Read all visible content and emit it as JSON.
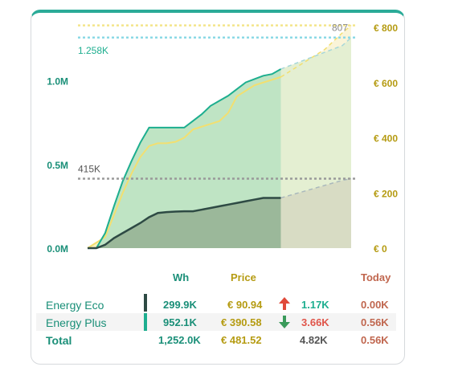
{
  "colors": {
    "eco": "#2e4a44",
    "plus": "#1dae8f",
    "price": "#e6d44a",
    "price_text": "#b59b12",
    "baseline_text": "#1dae8f",
    "today": "#c0664e",
    "up": "#e04a3a",
    "down": "#3a9a5a",
    "negative": "#e0554a"
  },
  "chart_data": {
    "type": "area",
    "y_left": {
      "ticks": [
        "0.0M",
        "0.5M",
        "1.0M"
      ],
      "values": [
        0,
        500000,
        1000000
      ],
      "range": [
        0,
        1300000
      ]
    },
    "y_right": {
      "ticks": [
        "€ 0",
        "€ 200",
        "€ 400",
        "€ 600",
        "€ 800"
      ],
      "values": [
        0,
        200,
        400,
        600,
        800
      ],
      "range": [
        0,
        800
      ]
    },
    "x": [
      0,
      1,
      2,
      3,
      4,
      5,
      6,
      7,
      8,
      9,
      10,
      11,
      12,
      13,
      14,
      15,
      16,
      17,
      18,
      19,
      20,
      21,
      22,
      23,
      24,
      25,
      26,
      27,
      28,
      29,
      30
    ],
    "actual_until": 22,
    "series": [
      {
        "key": "eco",
        "axis": "left",
        "values": [
          0,
          0,
          20000,
          60000,
          90000,
          120000,
          150000,
          185000,
          210000,
          215000,
          218000,
          220000,
          220000,
          230000,
          240000,
          250000,
          260000,
          270000,
          280000,
          290000,
          300000,
          300000,
          300000,
          315000,
          330000,
          345000,
          360000,
          375000,
          390000,
          405000,
          415000
        ]
      },
      {
        "key": "total",
        "axis": "left",
        "values": [
          0,
          0,
          90000,
          250000,
          400000,
          520000,
          630000,
          720000,
          720000,
          720000,
          720000,
          720000,
          760000,
          800000,
          850000,
          880000,
          910000,
          950000,
          990000,
          1010000,
          1030000,
          1040000,
          1070000,
          1090000,
          1110000,
          1130000,
          1150000,
          1170000,
          1190000,
          1210000,
          1258000
        ]
      },
      {
        "key": "price",
        "axis": "right",
        "values": [
          0,
          20,
          40,
          120,
          200,
          270,
          330,
          370,
          380,
          380,
          385,
          400,
          430,
          440,
          450,
          460,
          490,
          550,
          570,
          590,
          600,
          610,
          620,
          640,
          660,
          680,
          700,
          720,
          750,
          780,
          807
        ]
      }
    ],
    "reference_lines": [
      {
        "axis": "left",
        "value": 1258000,
        "label": "1.258K",
        "color": "#8bd9e6"
      },
      {
        "axis": "left",
        "value": 415000,
        "label": "415K",
        "color": "#9a9a9a"
      },
      {
        "axis": "right",
        "value": 807,
        "label": "807",
        "color": "#f3e58a"
      }
    ]
  },
  "table": {
    "headers": {
      "wh": "Wh",
      "price": "Price",
      "today": "Today"
    },
    "rows": [
      {
        "name": "Energy Eco",
        "wh": "299.9K",
        "price": "€ 90.94",
        "arrow": "up",
        "delta": "1.17K",
        "today": "0.00K"
      },
      {
        "name": "Energy Plus",
        "wh": "952.1K",
        "price": "€ 390.58",
        "arrow": "down",
        "delta": "3.66K",
        "today": "0.56K"
      }
    ],
    "total": {
      "name": "Total",
      "wh": "1,252.0K",
      "price": "€ 481.52",
      "delta": "4.82K",
      "today": "0.56K"
    }
  }
}
